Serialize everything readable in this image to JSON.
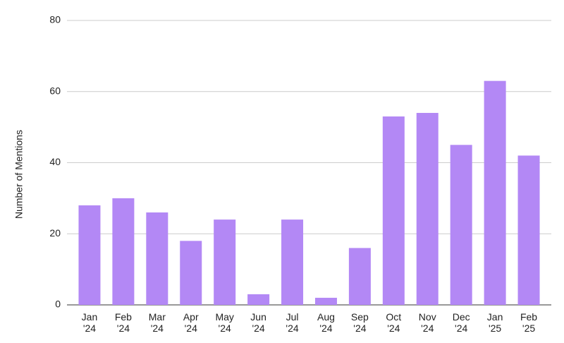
{
  "chart_data": {
    "type": "bar",
    "y_label": "Number of Mentions",
    "categories": [
      "Jan '24",
      "Feb '24",
      "Mar '24",
      "Apr '24",
      "May '24",
      "Jun '24",
      "Jul '24",
      "Aug '24",
      "Sep '24",
      "Oct '24",
      "Nov '24",
      "Dec '24",
      "Jan '25",
      "Feb '25"
    ],
    "values": [
      28,
      30,
      26,
      18,
      24,
      3,
      24,
      2,
      16,
      53,
      54,
      45,
      63,
      42
    ],
    "color": "#b388f5",
    "ylim": [
      0,
      80
    ],
    "yticks": [
      0,
      20,
      40,
      60,
      80
    ],
    "grid": true
  }
}
